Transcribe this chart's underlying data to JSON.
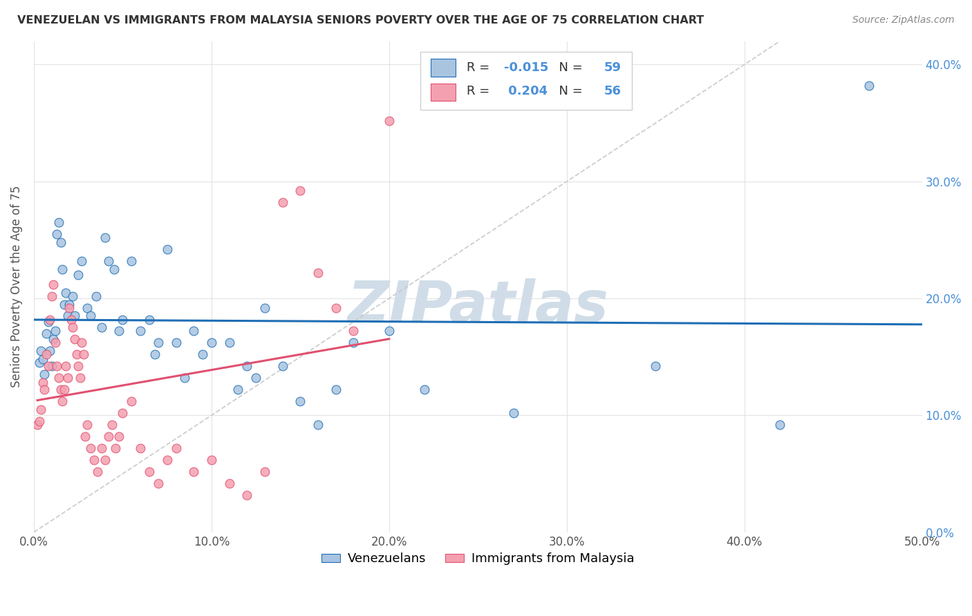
{
  "title": "VENEZUELAN VS IMMIGRANTS FROM MALAYSIA SENIORS POVERTY OVER THE AGE OF 75 CORRELATION CHART",
  "source": "Source: ZipAtlas.com",
  "ylabel": "Seniors Poverty Over the Age of 75",
  "legend_label_blue": "Venezuelans",
  "legend_label_pink": "Immigrants from Malaysia",
  "R_blue": -0.015,
  "N_blue": 59,
  "R_pink": 0.204,
  "N_pink": 56,
  "xlim": [
    0.0,
    0.5
  ],
  "ylim": [
    0.0,
    0.42
  ],
  "xticks": [
    0.0,
    0.1,
    0.2,
    0.3,
    0.4,
    0.5
  ],
  "yticks": [
    0.0,
    0.1,
    0.2,
    0.3,
    0.4
  ],
  "xtick_labels": [
    "0.0%",
    "10.0%",
    "20.0%",
    "30.0%",
    "40.0%",
    "50.0%"
  ],
  "ytick_labels_right": [
    "0.0%",
    "10.0%",
    "20.0%",
    "30.0%",
    "40.0%"
  ],
  "blue_scatter_x": [
    0.003,
    0.004,
    0.005,
    0.006,
    0.007,
    0.008,
    0.009,
    0.01,
    0.011,
    0.012,
    0.013,
    0.014,
    0.015,
    0.016,
    0.017,
    0.018,
    0.019,
    0.02,
    0.022,
    0.023,
    0.025,
    0.027,
    0.03,
    0.032,
    0.035,
    0.038,
    0.04,
    0.042,
    0.045,
    0.048,
    0.05,
    0.055,
    0.06,
    0.065,
    0.068,
    0.07,
    0.075,
    0.08,
    0.085,
    0.09,
    0.095,
    0.1,
    0.11,
    0.115,
    0.12,
    0.125,
    0.13,
    0.14,
    0.15,
    0.16,
    0.17,
    0.18,
    0.2,
    0.22,
    0.27,
    0.31,
    0.35,
    0.42,
    0.47
  ],
  "blue_scatter_y": [
    0.145,
    0.155,
    0.148,
    0.135,
    0.17,
    0.18,
    0.155,
    0.142,
    0.165,
    0.172,
    0.255,
    0.265,
    0.248,
    0.225,
    0.195,
    0.205,
    0.185,
    0.195,
    0.202,
    0.185,
    0.22,
    0.232,
    0.192,
    0.185,
    0.202,
    0.175,
    0.252,
    0.232,
    0.225,
    0.172,
    0.182,
    0.232,
    0.172,
    0.182,
    0.152,
    0.162,
    0.242,
    0.162,
    0.132,
    0.172,
    0.152,
    0.162,
    0.162,
    0.122,
    0.142,
    0.132,
    0.192,
    0.142,
    0.112,
    0.092,
    0.122,
    0.162,
    0.172,
    0.122,
    0.102,
    0.372,
    0.142,
    0.092,
    0.382
  ],
  "pink_scatter_x": [
    0.002,
    0.003,
    0.004,
    0.005,
    0.006,
    0.007,
    0.008,
    0.009,
    0.01,
    0.011,
    0.012,
    0.013,
    0.014,
    0.015,
    0.016,
    0.017,
    0.018,
    0.019,
    0.02,
    0.021,
    0.022,
    0.023,
    0.024,
    0.025,
    0.026,
    0.027,
    0.028,
    0.029,
    0.03,
    0.032,
    0.034,
    0.036,
    0.038,
    0.04,
    0.042,
    0.044,
    0.046,
    0.048,
    0.05,
    0.055,
    0.06,
    0.065,
    0.07,
    0.075,
    0.08,
    0.09,
    0.1,
    0.11,
    0.12,
    0.13,
    0.14,
    0.15,
    0.16,
    0.17,
    0.18,
    0.2
  ],
  "pink_scatter_y": [
    0.092,
    0.095,
    0.105,
    0.128,
    0.122,
    0.152,
    0.142,
    0.182,
    0.202,
    0.212,
    0.162,
    0.142,
    0.132,
    0.122,
    0.112,
    0.122,
    0.142,
    0.132,
    0.192,
    0.182,
    0.175,
    0.165,
    0.152,
    0.142,
    0.132,
    0.162,
    0.152,
    0.082,
    0.092,
    0.072,
    0.062,
    0.052,
    0.072,
    0.062,
    0.082,
    0.092,
    0.072,
    0.082,
    0.102,
    0.112,
    0.072,
    0.052,
    0.042,
    0.062,
    0.072,
    0.052,
    0.062,
    0.042,
    0.032,
    0.052,
    0.282,
    0.292,
    0.222,
    0.192,
    0.172,
    0.352
  ],
  "blue_color": "#a8c4e0",
  "pink_color": "#f4a0b0",
  "blue_line_color": "#1f6eb5",
  "pink_line_color": "#e05070",
  "diagonal_color": "#c8c8c8",
  "watermark_color": "#d0dde8",
  "background_color": "#ffffff",
  "grid_color": "#e0e0e0",
  "text_color_dark": "#333333",
  "text_color_blue": "#4a90d9",
  "text_color_gray": "#888888"
}
